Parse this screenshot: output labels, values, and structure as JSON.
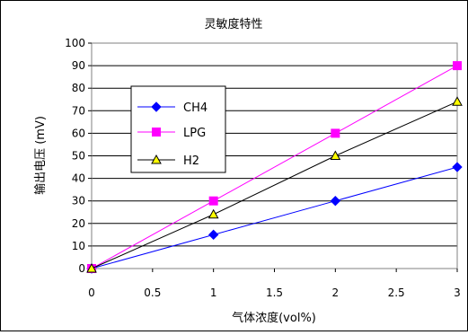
{
  "chart_data": {
    "type": "line",
    "title": "灵敏度特性",
    "xlabel": "气体浓度(vol%)",
    "ylabel": "输出电压 (mV)",
    "x": [
      0,
      1,
      2,
      3
    ],
    "xticks": [
      "0",
      "0.5",
      "1",
      "1.5",
      "2",
      "2.5",
      "3"
    ],
    "yticks": [
      "0",
      "10",
      "20",
      "30",
      "40",
      "50",
      "60",
      "70",
      "80",
      "90",
      "100"
    ],
    "xlim": [
      0,
      3
    ],
    "ylim": [
      0,
      100
    ],
    "grid": "horizontal",
    "legend_position": "left",
    "series": [
      {
        "name": "CH4",
        "values": [
          0,
          15,
          30,
          45
        ],
        "color": "#0000FF",
        "marker": "diamond"
      },
      {
        "name": "LPG",
        "values": [
          0,
          30,
          60,
          90
        ],
        "color": "#FF00FF",
        "marker": "square"
      },
      {
        "name": "H2",
        "values": [
          0,
          24,
          50,
          74
        ],
        "color": "#000000",
        "marker": "triangle"
      }
    ]
  }
}
